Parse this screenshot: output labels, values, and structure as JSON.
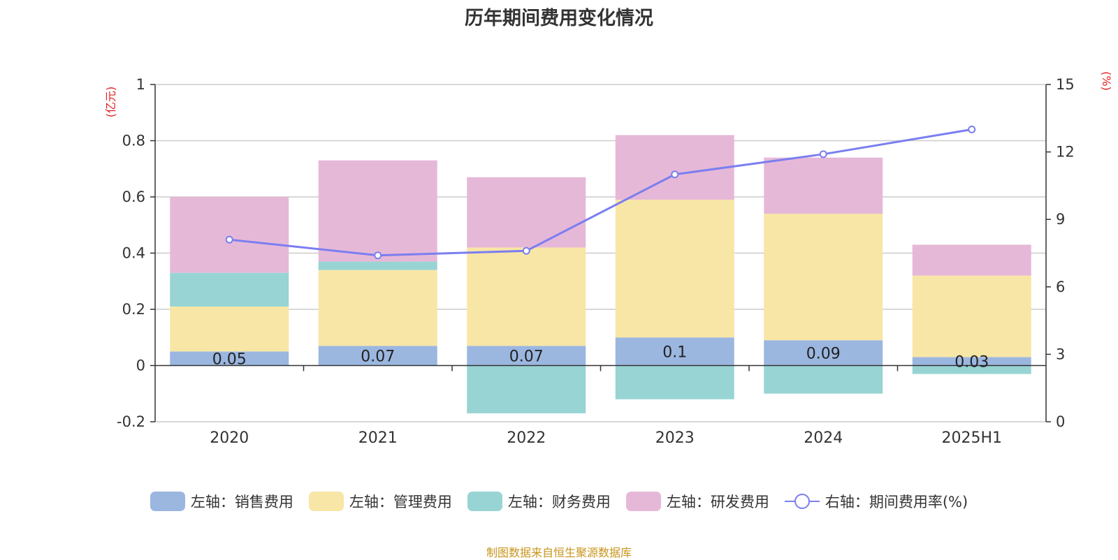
{
  "chart_data": {
    "type": "bar",
    "title": "历年期间费用变化情况",
    "categories": [
      "2020",
      "2021",
      "2022",
      "2023",
      "2024",
      "2025H1"
    ],
    "y_left": {
      "unit_label": "(亿元)",
      "range": [
        -0.2,
        1
      ],
      "ticks": [
        -0.2,
        0,
        0.2,
        0.4,
        0.6,
        0.8,
        1
      ]
    },
    "y_right": {
      "unit_label": "(%)",
      "range": [
        0,
        15
      ],
      "ticks": [
        0,
        3,
        6,
        9,
        12,
        15
      ]
    },
    "grid": true,
    "legend_position": "bottom",
    "series": [
      {
        "name": "左轴：销售费用",
        "type": "bar",
        "axis": "left",
        "color": "#9bb7e0",
        "values": [
          0.05,
          0.07,
          0.07,
          0.1,
          0.09,
          0.03
        ],
        "data_labels": [
          "0.05",
          "0.07",
          "0.07",
          "0.1",
          "0.09",
          "0.03"
        ]
      },
      {
        "name": "左轴：管理费用",
        "type": "bar",
        "axis": "left",
        "color": "#f8e6a6",
        "values": [
          0.16,
          0.27,
          0.35,
          0.49,
          0.45,
          0.29
        ]
      },
      {
        "name": "左轴：财务费用",
        "type": "bar",
        "axis": "left",
        "color": "#98d4d4",
        "values": [
          0.12,
          0.03,
          -0.17,
          -0.12,
          -0.1,
          -0.03
        ]
      },
      {
        "name": "左轴：研发费用",
        "type": "bar",
        "axis": "left",
        "color": "#e6b8d8",
        "values": [
          0.27,
          0.36,
          0.25,
          0.23,
          0.2,
          0.11
        ]
      },
      {
        "name": "右轴：期间费用率(%)",
        "type": "line",
        "axis": "right",
        "color": "#7b7ef0",
        "values": [
          8.1,
          7.4,
          7.6,
          11.0,
          11.9,
          13.0
        ]
      }
    ]
  },
  "source_text": "制图数据来自恒生聚源数据库"
}
